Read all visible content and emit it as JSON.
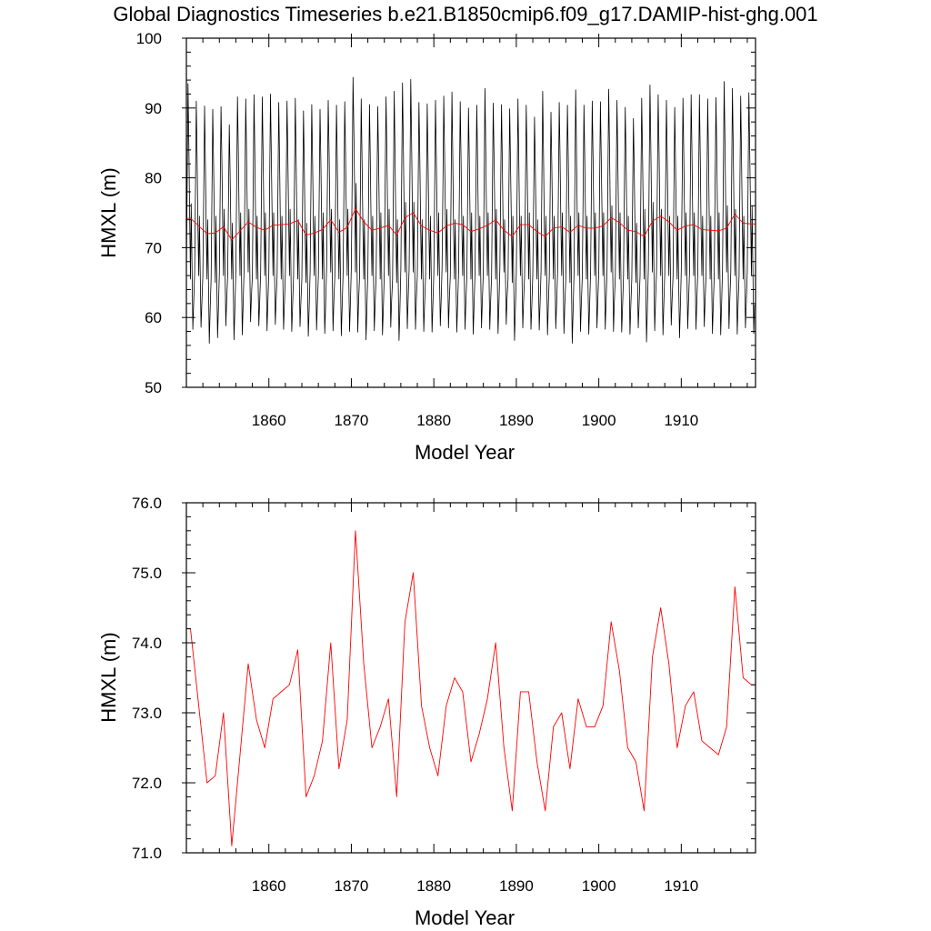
{
  "title": "Global Diagnostics Timeseries b.e21.B1850cmip6.f09_g17.DAMIP-hist-ghg.001",
  "colors": {
    "monthly": "#000000",
    "annual": "#ff0000",
    "axes": "#000000"
  },
  "chart_data": [
    {
      "type": "line",
      "xlabel": "Model Year",
      "ylabel": "HMXL (m)",
      "xlim": [
        1850,
        1919
      ],
      "ylim": [
        50,
        100
      ],
      "x_ticks": [
        1860,
        1870,
        1880,
        1890,
        1900,
        1910
      ],
      "y_ticks": [
        50,
        60,
        70,
        80,
        90,
        100
      ],
      "y_tick_labels": [
        "50",
        "60",
        "70",
        "80",
        "90",
        "100"
      ],
      "series": [
        {
          "color": "#000000",
          "description": "monthly values",
          "annual_max": [
            93.5,
            91.0,
            90.3,
            89.8,
            90.2,
            87.6,
            91.6,
            91.3,
            91.9,
            91.6,
            92.0,
            90.8,
            91.0,
            91.4,
            89.6,
            90.5,
            89.8,
            91.1,
            90.4,
            90.9,
            94.4,
            91.3,
            90.5,
            90.2,
            91.6,
            92.4,
            93.6,
            94.1,
            90.8,
            90.6,
            91.1,
            91.7,
            92.3,
            90.9,
            90.0,
            90.4,
            92.8,
            90.7,
            90.5,
            89.9,
            91.3,
            90.4,
            88.7,
            92.4,
            89.4,
            90.8,
            90.4,
            92.6,
            90.4,
            91.0,
            90.9,
            92.7,
            91.1,
            90.1,
            88.5,
            91.4,
            93.3,
            91.9,
            91.1,
            90.1,
            91.4,
            91.9,
            91.9,
            91.3,
            91.5,
            93.8,
            92.8,
            91.7,
            92.2
          ],
          "annual_min": [
            58.3,
            58.6,
            56.3,
            57.1,
            58.8,
            56.8,
            57.5,
            59.4,
            58.8,
            58.1,
            59.0,
            58.3,
            58.0,
            58.7,
            57.3,
            58.2,
            57.7,
            58.1,
            57.4,
            58.0,
            57.9,
            56.8,
            58.1,
            57.5,
            58.6,
            56.7,
            58.4,
            58.3,
            58.0,
            57.9,
            58.8,
            58.5,
            57.9,
            58.3,
            57.6,
            58.5,
            58.3,
            57.7,
            59.0,
            56.7,
            58.5,
            58.3,
            58.2,
            57.5,
            58.4,
            57.7,
            56.3,
            58.0,
            57.6,
            58.5,
            58.3,
            58.0,
            57.9,
            57.6,
            58.5,
            56.5,
            58.1,
            57.5,
            58.9,
            57.1,
            58.4,
            58.3,
            58.7,
            57.7,
            57.5,
            58.4,
            57.6,
            58.5,
            57.7
          ],
          "secondary_peak": [
            76.3,
            74.5,
            74.0,
            74.5,
            75.5,
            73.5,
            75.0,
            75.5,
            74.5,
            75.0,
            75.0,
            74.5,
            75.5,
            74.0,
            73.5,
            74.5,
            75.0,
            75.5,
            74.0,
            75.5,
            79.2,
            74.0,
            74.5,
            75.0,
            75.5,
            74.0,
            76.5,
            76.5,
            74.0,
            74.5,
            75.0,
            75.5,
            74.0,
            74.5,
            75.0,
            74.5,
            75.0,
            75.5,
            74.0,
            74.5,
            74.5,
            75.0,
            74.0,
            74.5,
            74.5,
            75.0,
            74.5,
            75.0,
            74.5,
            75.0,
            75.0,
            76.0,
            75.0,
            74.5,
            73.5,
            75.5,
            76.5,
            75.5,
            74.5,
            74.5,
            75.0,
            75.0,
            74.5,
            74.5,
            75.0,
            76.0,
            75.5,
            74.5,
            76.0
          ],
          "secondary_trough": [
            65.5,
            66.0,
            65.5,
            65.0,
            66.0,
            65.5,
            66.0,
            66.5,
            65.5,
            66.0,
            66.0,
            65.5,
            66.0,
            65.5,
            65.0,
            66.0,
            65.5,
            66.5,
            65.5,
            66.0,
            66.5,
            65.5,
            66.0,
            65.5,
            66.0,
            65.0,
            66.5,
            66.5,
            65.5,
            65.5,
            66.0,
            66.5,
            65.5,
            66.0,
            65.5,
            66.0,
            66.0,
            65.5,
            66.5,
            65.0,
            66.0,
            65.5,
            65.5,
            66.0,
            65.5,
            66.0,
            65.0,
            66.0,
            65.5,
            66.0,
            66.0,
            66.5,
            65.5,
            65.5,
            65.0,
            65.5,
            66.5,
            66.0,
            66.0,
            65.5,
            66.0,
            66.0,
            66.0,
            65.5,
            65.5,
            66.5,
            66.0,
            65.5,
            66.0
          ]
        },
        {
          "color": "#ff0000",
          "description": "annual mean",
          "ref": "annual_mean"
        }
      ]
    },
    {
      "type": "line",
      "xlabel": "Model Year",
      "ylabel": "HMXL (m)",
      "xlim": [
        1850,
        1919
      ],
      "ylim": [
        71.0,
        76.0
      ],
      "x_ticks": [
        1860,
        1870,
        1880,
        1890,
        1900,
        1910
      ],
      "y_ticks": [
        71,
        72,
        73,
        74,
        75,
        76
      ],
      "y_tick_labels": [
        "71.0",
        "72.0",
        "73.0",
        "74.0",
        "75.0",
        "76.0"
      ],
      "series": [
        {
          "color": "#ff0000",
          "description": "annual mean",
          "ref": "annual_mean"
        }
      ]
    }
  ],
  "annual_mean": {
    "x": [
      1850.5,
      1851.5,
      1852.5,
      1853.5,
      1854.5,
      1855.5,
      1856.5,
      1857.5,
      1858.5,
      1859.5,
      1860.5,
      1861.5,
      1862.5,
      1863.5,
      1864.5,
      1865.5,
      1866.5,
      1867.5,
      1868.5,
      1869.5,
      1870.5,
      1871.5,
      1872.5,
      1873.5,
      1874.5,
      1875.5,
      1876.5,
      1877.5,
      1878.5,
      1879.5,
      1880.5,
      1881.5,
      1882.5,
      1883.5,
      1884.5,
      1885.5,
      1886.5,
      1887.5,
      1888.5,
      1889.5,
      1890.5,
      1891.5,
      1892.5,
      1893.5,
      1894.5,
      1895.5,
      1896.5,
      1897.5,
      1898.5,
      1899.5,
      1900.5,
      1901.5,
      1902.5,
      1903.5,
      1904.5,
      1905.5,
      1906.5,
      1907.5,
      1908.5,
      1909.5,
      1910.5,
      1911.5,
      1912.5,
      1913.5,
      1914.5,
      1915.5,
      1916.5,
      1917.5,
      1918.5
    ],
    "y": [
      74.2,
      73.1,
      72.0,
      72.1,
      73.0,
      71.1,
      72.4,
      73.7,
      72.9,
      72.5,
      73.2,
      73.3,
      73.4,
      73.9,
      71.8,
      72.1,
      72.6,
      74.0,
      72.2,
      72.9,
      75.6,
      73.7,
      72.5,
      72.8,
      73.2,
      71.8,
      74.3,
      75.0,
      73.1,
      72.5,
      72.1,
      73.1,
      73.5,
      73.3,
      72.3,
      72.7,
      73.2,
      74.0,
      72.5,
      71.6,
      73.3,
      73.3,
      72.3,
      71.6,
      72.8,
      73.0,
      72.2,
      73.2,
      72.8,
      72.8,
      73.1,
      74.3,
      73.6,
      72.5,
      72.3,
      71.6,
      73.8,
      74.5,
      73.7,
      72.5,
      73.1,
      73.3,
      72.6,
      72.5,
      72.4,
      72.8,
      74.8,
      73.5,
      73.4
    ]
  }
}
